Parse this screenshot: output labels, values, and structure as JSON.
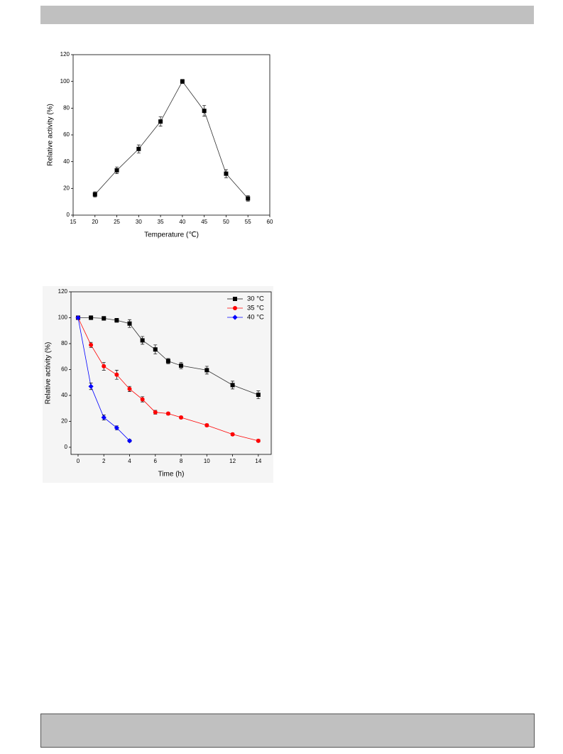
{
  "chart_data": [
    {
      "type": "line",
      "x_label": "Temperature (℃)",
      "y_label": "Relative activity (%)",
      "xlim": [
        15,
        60
      ],
      "xticks": [
        15,
        20,
        25,
        30,
        35,
        40,
        45,
        50,
        55,
        60
      ],
      "ylim": [
        0,
        120
      ],
      "yticks": [
        0,
        20,
        40,
        60,
        80,
        100,
        120
      ],
      "series": [
        {
          "color": "#000000",
          "marker": "square",
          "x": [
            20,
            25,
            30,
            35,
            40,
            45,
            50,
            55
          ],
          "values": [
            15.5,
            33.5,
            49.5,
            70,
            100,
            78,
            31,
            12.5
          ],
          "errors": [
            2,
            2.5,
            3,
            3.5,
            1.5,
            4,
            3,
            2
          ]
        }
      ]
    },
    {
      "type": "line",
      "x_label": "Time (h)",
      "y_label": "Relative activity (%)",
      "xlim": [
        -0.55,
        15
      ],
      "xticks": [
        0,
        2,
        4,
        6,
        8,
        10,
        12,
        14
      ],
      "ylim": [
        -5.5,
        120
      ],
      "yticks": [
        0,
        20,
        40,
        60,
        80,
        100,
        120
      ],
      "legend": "upper right",
      "series": [
        {
          "name": "30 °C",
          "color": "#000000",
          "marker": "square",
          "x": [
            0,
            1,
            2,
            3,
            4,
            5,
            6,
            7,
            8,
            10,
            12,
            14
          ],
          "values": [
            100,
            100,
            99.5,
            98,
            95.5,
            82.5,
            75.5,
            66.5,
            63,
            59.5,
            48,
            40.5
          ],
          "errors": [
            1,
            1.5,
            1.5,
            1.5,
            3,
            3,
            3.5,
            2,
            2.5,
            3,
            3,
            3
          ]
        },
        {
          "name": "35 °C",
          "color": "#ff0000",
          "marker": "circle",
          "x": [
            0,
            1,
            2,
            3,
            4,
            5,
            6,
            7,
            8,
            10,
            12,
            14
          ],
          "values": [
            100,
            79,
            62.5,
            56,
            45,
            37,
            27,
            26,
            23,
            17,
            10,
            5
          ],
          "errors": [
            1,
            2,
            3,
            3.5,
            2,
            2,
            1.5,
            1,
            1,
            1,
            1,
            1
          ]
        },
        {
          "name": "40 °C",
          "color": "#0000ff",
          "marker": "diamond",
          "x": [
            0,
            1,
            2,
            3,
            4
          ],
          "values": [
            100,
            47,
            23,
            15,
            5
          ],
          "errors": [
            1,
            2.5,
            2,
            1.5,
            1
          ]
        }
      ]
    }
  ]
}
